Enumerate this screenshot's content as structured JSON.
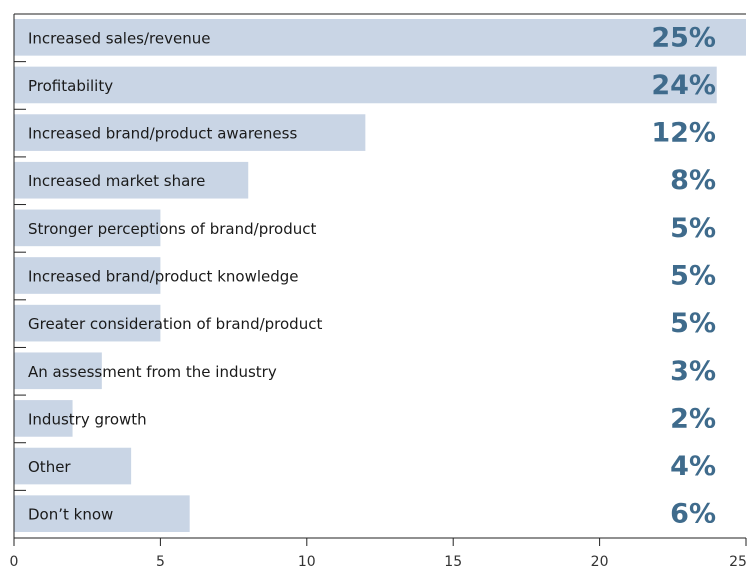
{
  "chart_data": {
    "type": "barh",
    "categories": [
      "Increased sales/revenue",
      "Profitability",
      "Increased brand/product awareness",
      "Increased market share",
      "Stronger perceptions of brand/product",
      "Increased brand/product knowledge",
      "Greater consideration of brand/product",
      "An assessment from the industry",
      "Industry growth",
      "Other",
      "Don’t know"
    ],
    "values": [
      25,
      24,
      12,
      8,
      5,
      5,
      5,
      3,
      2,
      4,
      6
    ],
    "value_labels": [
      "25%",
      "24%",
      "12%",
      "8%",
      "5%",
      "5%",
      "5%",
      "3%",
      "2%",
      "4%",
      "6%"
    ],
    "color": "#c9d5e5",
    "label_color": "#3f6b8c",
    "xlim": [
      0,
      25
    ],
    "xticks": [
      0,
      5,
      10,
      15,
      20,
      25
    ]
  }
}
